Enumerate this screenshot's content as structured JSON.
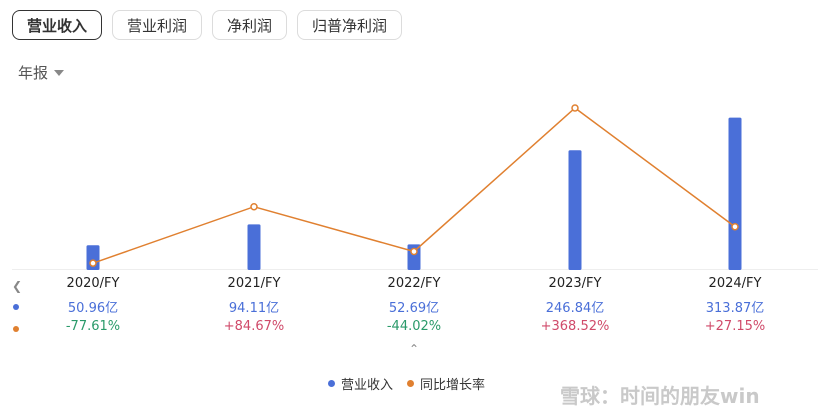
{
  "tabs": [
    {
      "label": "营业收入",
      "active": true
    },
    {
      "label": "营业利润",
      "active": false
    },
    {
      "label": "净利润",
      "active": false
    },
    {
      "label": "归普净利润",
      "active": false
    }
  ],
  "period": "年报",
  "legend": {
    "revenue": "营业收入",
    "growth": "同比增长率"
  },
  "watermark": "雪球：时间的朋友win",
  "colors": {
    "bar": "#4a6fd8",
    "line": "#e08030",
    "positive": "#d04a6a",
    "negative": "#2a9a6a"
  },
  "chart_data": {
    "type": "bar+line",
    "categories": [
      "2020/FY",
      "2021/FY",
      "2022/FY",
      "2023/FY",
      "2024/FY"
    ],
    "series": [
      {
        "name": "营业收入",
        "type": "bar",
        "values": [
          50.96,
          94.11,
          52.69,
          246.84,
          313.87
        ],
        "labels": [
          "50.96亿",
          "94.11亿",
          "52.69亿",
          "246.84亿",
          "313.87亿"
        ]
      },
      {
        "name": "同比增长率",
        "type": "line",
        "values": [
          -77.61,
          84.67,
          -44.02,
          368.52,
          27.15
        ],
        "labels": [
          "-77.61%",
          "+84.67%",
          "-44.02%",
          "+368.52%",
          "+27.15%"
        ]
      }
    ]
  }
}
